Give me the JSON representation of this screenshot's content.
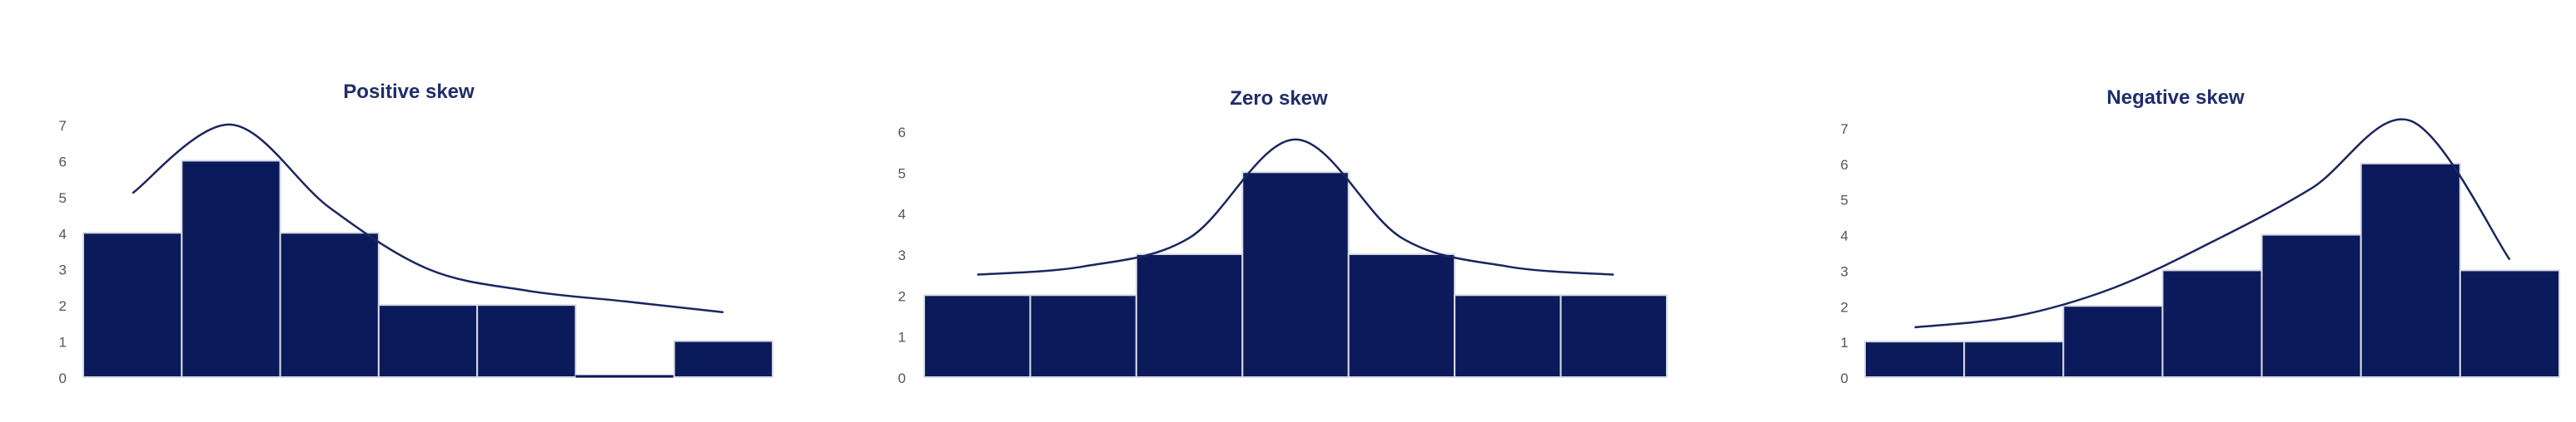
{
  "colors": {
    "bar": "#0b1a5a",
    "bar_stroke": "#d8dbe6",
    "curve": "#1b2660",
    "axis": "#cfcfcf"
  },
  "chart_data": [
    {
      "type": "bar",
      "title": "Positive skew",
      "xlabel": "",
      "ylabel": "",
      "ylim": [
        0,
        7
      ],
      "yticks": [
        "0",
        "1",
        "2",
        "3",
        "4",
        "5",
        "6",
        "7"
      ],
      "values": [
        4,
        6,
        4,
        2,
        2,
        0,
        1
      ],
      "curve": [
        5.1,
        7.0,
        4.7,
        3.0,
        2.4,
        2.1,
        1.8
      ],
      "grid": false,
      "legend": "none"
    },
    {
      "type": "bar",
      "title": "Zero skew",
      "xlabel": "",
      "ylabel": "",
      "ylim": [
        0,
        6
      ],
      "yticks": [
        "0",
        "1",
        "2",
        "3",
        "4",
        "5",
        "6"
      ],
      "values": [
        2,
        2,
        3,
        5,
        3,
        2,
        2
      ],
      "curve": [
        2.5,
        2.7,
        3.4,
        5.8,
        3.4,
        2.7,
        2.5
      ],
      "grid": false,
      "legend": "none"
    },
    {
      "type": "bar",
      "title": "Negative skew",
      "xlabel": "",
      "ylabel": "",
      "ylim": [
        0,
        7
      ],
      "yticks": [
        "0",
        "1",
        "2",
        "3",
        "4",
        "5",
        "6",
        "7"
      ],
      "values": [
        1,
        1,
        2,
        3,
        4,
        6,
        3
      ],
      "curve": [
        1.4,
        1.7,
        2.5,
        3.8,
        5.3,
        7.2,
        3.3
      ],
      "grid": false,
      "legend": "none"
    }
  ]
}
